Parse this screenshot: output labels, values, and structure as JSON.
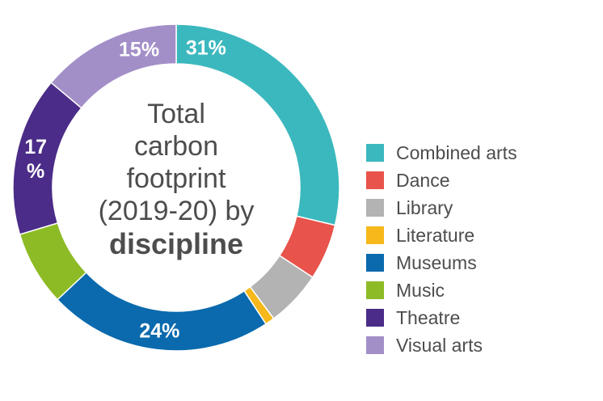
{
  "chart_data": {
    "type": "pie",
    "style": "donut",
    "title_lines": [
      "Total",
      "carbon",
      "footprint",
      "(2019-20) by"
    ],
    "title_bold": "discipline",
    "categories": [
      "Combined arts",
      "Dance",
      "Library",
      "Literature",
      "Museums",
      "Music",
      "Theatre",
      "Visual arts"
    ],
    "values": [
      31,
      6,
      6,
      1,
      24,
      8,
      17,
      15
    ],
    "data_labels": [
      "31%",
      "",
      "",
      "",
      "24%",
      "",
      "17\n%",
      "15%"
    ],
    "colors": [
      "#3bb8be",
      "#e8534b",
      "#b3b3b3",
      "#f6b81a",
      "#0a6aad",
      "#8dbb25",
      "#4b2c88",
      "#a38fc8"
    ],
    "legend_position": "right"
  }
}
